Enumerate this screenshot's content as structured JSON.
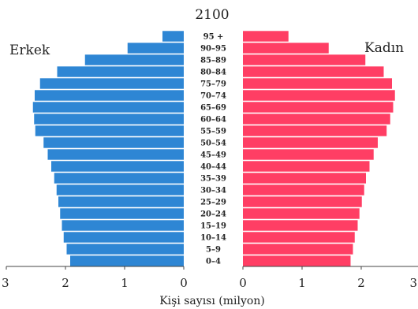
{
  "chart_data": {
    "type": "bar",
    "title": "2100",
    "xlabel": "Kişi sayısı (milyon)",
    "ylabel": "",
    "categories": [
      "0–4",
      "5–9",
      "10–14",
      "15–19",
      "20–24",
      "25–29",
      "30–34",
      "35–39",
      "40–44",
      "45–49",
      "50–54",
      "55–59",
      "60–64",
      "65–69",
      "70–74",
      "75–79",
      "80–84",
      "85–89",
      "90–95",
      "95 +"
    ],
    "series": [
      {
        "name": "Erkek",
        "color": "#2e86d4",
        "side": "left",
        "values": [
          1.92,
          1.98,
          2.03,
          2.06,
          2.09,
          2.12,
          2.15,
          2.19,
          2.24,
          2.3,
          2.37,
          2.51,
          2.53,
          2.55,
          2.52,
          2.43,
          2.14,
          1.67,
          0.95,
          0.36
        ]
      },
      {
        "name": "Kadın",
        "color": "#ff3e64",
        "side": "right",
        "values": [
          1.82,
          1.86,
          1.89,
          1.94,
          1.97,
          2.01,
          2.05,
          2.08,
          2.14,
          2.21,
          2.28,
          2.43,
          2.49,
          2.54,
          2.57,
          2.52,
          2.38,
          2.07,
          1.45,
          0.77
        ]
      }
    ],
    "xlim_left": [
      3,
      0
    ],
    "xlim_right": [
      0,
      3
    ],
    "ticks_left": [
      "3",
      "2",
      "1",
      "0"
    ],
    "ticks_right": [
      "0",
      "1",
      "2",
      "3"
    ],
    "grid": false,
    "legend": "none"
  }
}
